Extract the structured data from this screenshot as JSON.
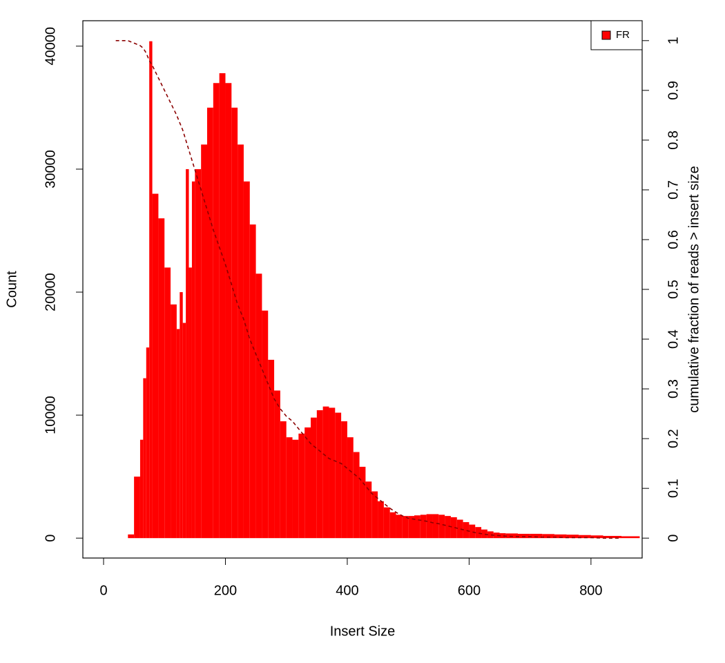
{
  "chart_data": {
    "type": "histogram-line",
    "xlabel": "Insert Size",
    "ylabel": "Count",
    "y2label": "cumulative fraction of reads > insert size",
    "x": [
      20,
      30,
      40,
      50,
      60,
      65,
      70,
      75,
      80,
      90,
      100,
      110,
      120,
      125,
      130,
      135,
      140,
      145,
      150,
      160,
      170,
      180,
      190,
      200,
      210,
      220,
      230,
      240,
      250,
      260,
      270,
      280,
      290,
      300,
      310,
      320,
      330,
      340,
      350,
      360,
      370,
      380,
      390,
      400,
      410,
      420,
      430,
      440,
      450,
      460,
      470,
      480,
      490,
      500,
      510,
      520,
      530,
      540,
      550,
      560,
      570,
      580,
      590,
      600,
      610,
      620,
      630,
      640,
      650,
      660,
      680,
      700,
      720,
      740,
      760,
      780,
      800,
      820,
      850
    ],
    "series": [
      {
        "name": "FR",
        "color": "#ff0000",
        "values": [
          0,
          0,
          300,
          5000,
          8000,
          13000,
          15500,
          40400,
          28000,
          26000,
          22000,
          19000,
          17000,
          20000,
          17500,
          30000,
          22000,
          29000,
          30000,
          32000,
          35000,
          37000,
          37800,
          37000,
          35000,
          32000,
          29000,
          25500,
          21500,
          18500,
          14500,
          12000,
          9500,
          8200,
          8000,
          8500,
          9000,
          9800,
          10400,
          10700,
          10600,
          10200,
          9500,
          8200,
          7000,
          5800,
          4600,
          3800,
          3000,
          2500,
          2100,
          1900,
          1800,
          1800,
          1850,
          1900,
          1950,
          1950,
          1900,
          1800,
          1700,
          1500,
          1300,
          1100,
          900,
          700,
          550,
          450,
          400,
          380,
          350,
          350,
          330,
          300,
          280,
          250,
          220,
          180,
          150
        ]
      },
      {
        "color": "#8b0000",
        "axis": "y2",
        "linestyle": "dashed",
        "values": [
          1,
          1,
          1,
          0.995,
          0.99,
          0.985,
          0.975,
          0.96,
          0.95,
          0.925,
          0.9,
          0.875,
          0.85,
          0.835,
          0.82,
          0.8,
          0.78,
          0.76,
          0.74,
          0.7,
          0.66,
          0.62,
          0.585,
          0.55,
          0.51,
          0.47,
          0.44,
          0.4,
          0.37,
          0.34,
          0.31,
          0.28,
          0.26,
          0.245,
          0.235,
          0.22,
          0.205,
          0.19,
          0.18,
          0.17,
          0.16,
          0.155,
          0.15,
          0.14,
          0.13,
          0.12,
          0.105,
          0.09,
          0.08,
          0.07,
          0.06,
          0.052,
          0.045,
          0.04,
          0.038,
          0.036,
          0.034,
          0.031,
          0.029,
          0.026,
          0.023,
          0.02,
          0.017,
          0.014,
          0.011,
          0.009,
          0.007,
          0.006,
          0.005,
          0.004,
          0.003,
          0.003,
          0.002,
          0.002,
          0.001,
          0.001,
          0.001,
          0,
          0
        ]
      }
    ],
    "xlim": [
      -34,
      884
    ],
    "xticks": [
      0,
      200,
      400,
      600,
      800
    ],
    "ylim": [
      -1618,
      42068
    ],
    "yticks": [
      0,
      10000,
      20000,
      30000,
      40000
    ],
    "y2lim": [
      -0.04,
      1.04
    ],
    "y2ticks": [
      0,
      0.1,
      0.2,
      0.3,
      0.4,
      0.5,
      0.6,
      0.7,
      0.8,
      0.9,
      1
    ],
    "legend": "top-right"
  }
}
